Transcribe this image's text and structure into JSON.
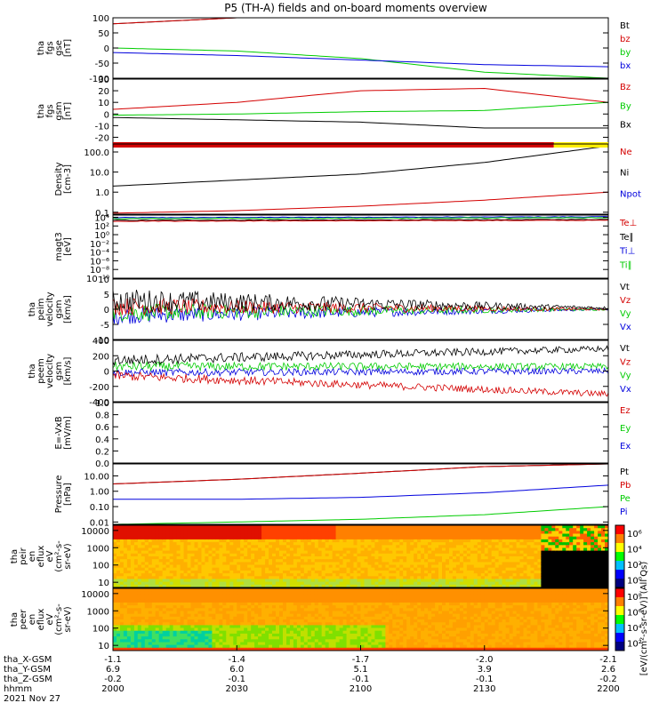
{
  "title": "P5 (TH-A) fields and on-board moments overview",
  "colors": {
    "black": "#000000",
    "red": "#d40000",
    "green": "#00cc00",
    "blue": "#0000dd",
    "yellow": "#ffee00"
  },
  "panels": [
    {
      "id": "fgs-gse",
      "ylabel": [
        "tha",
        "fgs",
        "gse",
        "[nT]"
      ],
      "ticks": [
        "100",
        "50",
        "0",
        "-50",
        "-100"
      ],
      "tickvals": [
        100,
        50,
        0,
        -50,
        -100
      ],
      "ylim": [
        -100,
        100
      ],
      "log": false,
      "legend": [
        {
          "t": "Bt",
          "c": "black"
        },
        {
          "t": "bz",
          "c": "red"
        },
        {
          "t": "by",
          "c": "green"
        },
        {
          "t": "bx",
          "c": "blue"
        }
      ]
    },
    {
      "id": "fgs-gsm",
      "ylabel": [
        "tha",
        "fgs",
        "gsm",
        "[nT]"
      ],
      "ticks": [
        "30",
        "20",
        "10",
        "0",
        "-10",
        "-20"
      ],
      "tickvals": [
        30,
        20,
        10,
        0,
        -10,
        -20
      ],
      "ylim": [
        -25,
        30
      ],
      "log": false,
      "legend": [
        {
          "t": "Bz",
          "c": "red"
        },
        {
          "t": "By",
          "c": "green"
        },
        {
          "t": "Bx",
          "c": "black"
        }
      ]
    },
    {
      "id": "density",
      "ylabel": [
        "Density",
        "[cm-3]"
      ],
      "ticks": [
        "100.0",
        "10.0",
        "1.0",
        "0.1"
      ],
      "tickvals": [
        100,
        10,
        1,
        0.1
      ],
      "ylim": [
        0.08,
        250
      ],
      "log": true,
      "legend": [
        {
          "t": "Ne",
          "c": "red"
        },
        {
          "t": "Ni",
          "c": "black"
        },
        {
          "t": "Npot",
          "c": "blue"
        }
      ]
    },
    {
      "id": "temp",
      "ylabel": [
        "magt3",
        "[eV]"
      ],
      "ticks": [
        "10⁴",
        "10²",
        "10⁰",
        "10⁻²",
        "10⁻⁴",
        "10⁻⁶",
        "10⁻⁸",
        "10⁻¹⁰"
      ],
      "tickvals": [
        4,
        2,
        0,
        -2,
        -4,
        -6,
        -8,
        -10
      ],
      "ylim": [
        -10,
        4.5
      ],
      "log": false,
      "legend": [
        {
          "t": "Te⊥",
          "c": "red"
        },
        {
          "t": "Te∥",
          "c": "black"
        },
        {
          "t": "Ti⊥",
          "c": "blue"
        },
        {
          "t": "Ti∥",
          "c": "green"
        }
      ]
    },
    {
      "id": "peim",
      "ylabel": [
        "tha",
        "peim",
        "velocity",
        "gsm",
        "[km/s]"
      ],
      "ticks": [
        "10",
        "5",
        "0",
        "-5",
        "-10"
      ],
      "tickvals": [
        10,
        5,
        0,
        -5,
        -10
      ],
      "ylim": [
        -10,
        10
      ],
      "log": false,
      "legend": [
        {
          "t": "Vt",
          "c": "black"
        },
        {
          "t": "Vz",
          "c": "red"
        },
        {
          "t": "Vy",
          "c": "green"
        },
        {
          "t": "Vx",
          "c": "blue"
        }
      ]
    },
    {
      "id": "peem",
      "ylabel": [
        "tha",
        "peem",
        "velocity",
        "gsm",
        "[km/s]"
      ],
      "ticks": [
        "400",
        "200",
        "0",
        "-200",
        "-400"
      ],
      "tickvals": [
        400,
        200,
        0,
        -200,
        -400
      ],
      "ylim": [
        -400,
        400
      ],
      "log": false,
      "legend": [
        {
          "t": "Vt",
          "c": "black"
        },
        {
          "t": "Vz",
          "c": "red"
        },
        {
          "t": "Vy",
          "c": "green"
        },
        {
          "t": "Vx",
          "c": "blue"
        }
      ]
    },
    {
      "id": "efield",
      "ylabel": [
        "E=-VxB",
        "[mV/m]"
      ],
      "ticks": [
        "1.0",
        "0.8",
        "0.6",
        "0.4",
        "0.2",
        "0.0"
      ],
      "tickvals": [
        1,
        0.8,
        0.6,
        0.4,
        0.2,
        0
      ],
      "ylim": [
        0,
        1
      ],
      "log": false,
      "legend": [
        {
          "t": "Ez",
          "c": "red"
        },
        {
          "t": "Ey",
          "c": "green"
        },
        {
          "t": "Ex",
          "c": "blue"
        }
      ]
    },
    {
      "id": "pressure",
      "ylabel": [
        "Pressure",
        "[nPa]"
      ],
      "ticks": [
        "10.00",
        "1.00",
        "0.10",
        "0.01"
      ],
      "tickvals": [
        10,
        1,
        0.1,
        0.01
      ],
      "ylim": [
        0.007,
        60
      ],
      "log": true,
      "legend": [
        {
          "t": "Pt",
          "c": "black"
        },
        {
          "t": "Pb",
          "c": "red"
        },
        {
          "t": "Pe",
          "c": "green"
        },
        {
          "t": "Pi",
          "c": "blue"
        }
      ]
    },
    {
      "id": "peir",
      "ylabel": [
        "tha",
        "peir",
        "en",
        "eflux",
        "eV",
        "(cm²-s-",
        "sr-eV)"
      ],
      "ticks": [
        "10000",
        "1000",
        "100",
        "10"
      ],
      "tickvals": [
        4,
        3,
        2,
        1
      ],
      "ylim": [
        0.7,
        4.3
      ],
      "log": false,
      "cbticks": [
        "10⁶",
        "10⁴",
        "10²",
        "10⁰"
      ],
      "legend": []
    },
    {
      "id": "peer",
      "ylabel": [
        "tha",
        "peer",
        "en",
        "eflux",
        "eV",
        "(cm²-s-",
        "sr-eV)"
      ],
      "ticks": [
        "10000",
        "1000",
        "100",
        "10"
      ],
      "tickvals": [
        4,
        3,
        2,
        1
      ],
      "ylim": [
        0.7,
        4.3
      ],
      "log": false,
      "cbticks": [
        "10⁸",
        "10⁶",
        "10⁴",
        "10²"
      ],
      "legend": []
    }
  ],
  "colorbar_label": "[eV/(cm²-s-sr-eV)] (All Qs)",
  "xaxis": {
    "rows": [
      {
        "label": "tha_X-GSM",
        "vals": [
          "-1.1",
          "-1.4",
          "-1.7",
          "-2.0",
          "-2.1"
        ]
      },
      {
        "label": "tha_Y-GSM",
        "vals": [
          "6.9",
          "6.0",
          "5.1",
          "3.9",
          "2.6"
        ]
      },
      {
        "label": "tha_Z-GSM",
        "vals": [
          "-0.2",
          "-0.1",
          "-0.1",
          "-0.1",
          "-0.2"
        ]
      },
      {
        "label": "hhmm",
        "vals": [
          "2000",
          "2030",
          "2100",
          "2130",
          "2200"
        ]
      }
    ],
    "date": "2021 Nov 27"
  },
  "chart_data": {
    "type": "line",
    "x": [
      "2000",
      "2030",
      "2100",
      "2130",
      "2200"
    ],
    "series": [
      {
        "name": "Bt",
        "panel": "fgs-gse",
        "values": [
          80,
          100,
          100,
          100,
          100
        ]
      },
      {
        "name": "bz",
        "panel": "fgs-gse",
        "values": [
          80,
          100,
          100,
          100,
          100
        ]
      },
      {
        "name": "by",
        "panel": "fgs-gse",
        "values": [
          0,
          -10,
          -35,
          -80,
          -100
        ]
      },
      {
        "name": "bx",
        "panel": "fgs-gse",
        "values": [
          -15,
          -25,
          -40,
          -55,
          -62
        ]
      },
      {
        "name": "Bz",
        "panel": "fgs-gsm",
        "values": [
          4,
          10,
          20,
          22,
          10
        ]
      },
      {
        "name": "By",
        "panel": "fgs-gsm",
        "values": [
          -1,
          0,
          2,
          3,
          10
        ]
      },
      {
        "name": "Bx",
        "panel": "fgs-gsm",
        "values": [
          -3,
          -5,
          -7,
          -12,
          -12
        ]
      },
      {
        "name": "Ni",
        "panel": "density",
        "values": [
          2,
          4,
          8,
          30,
          200
        ]
      },
      {
        "name": "Ne",
        "panel": "density",
        "values": [
          0.09,
          0.12,
          0.2,
          0.4,
          1
        ]
      },
      {
        "name": "Pt",
        "panel": "pressure",
        "values": [
          3,
          6,
          15,
          40,
          60
        ]
      },
      {
        "name": "Pb",
        "panel": "pressure",
        "values": [
          3,
          6,
          15,
          40,
          60
        ]
      },
      {
        "name": "Pi",
        "panel": "pressure",
        "values": [
          0.3,
          0.3,
          0.4,
          0.8,
          2.5
        ]
      },
      {
        "name": "Pe",
        "panel": "pressure",
        "values": [
          0.007,
          0.01,
          0.015,
          0.03,
          0.1
        ]
      }
    ]
  }
}
